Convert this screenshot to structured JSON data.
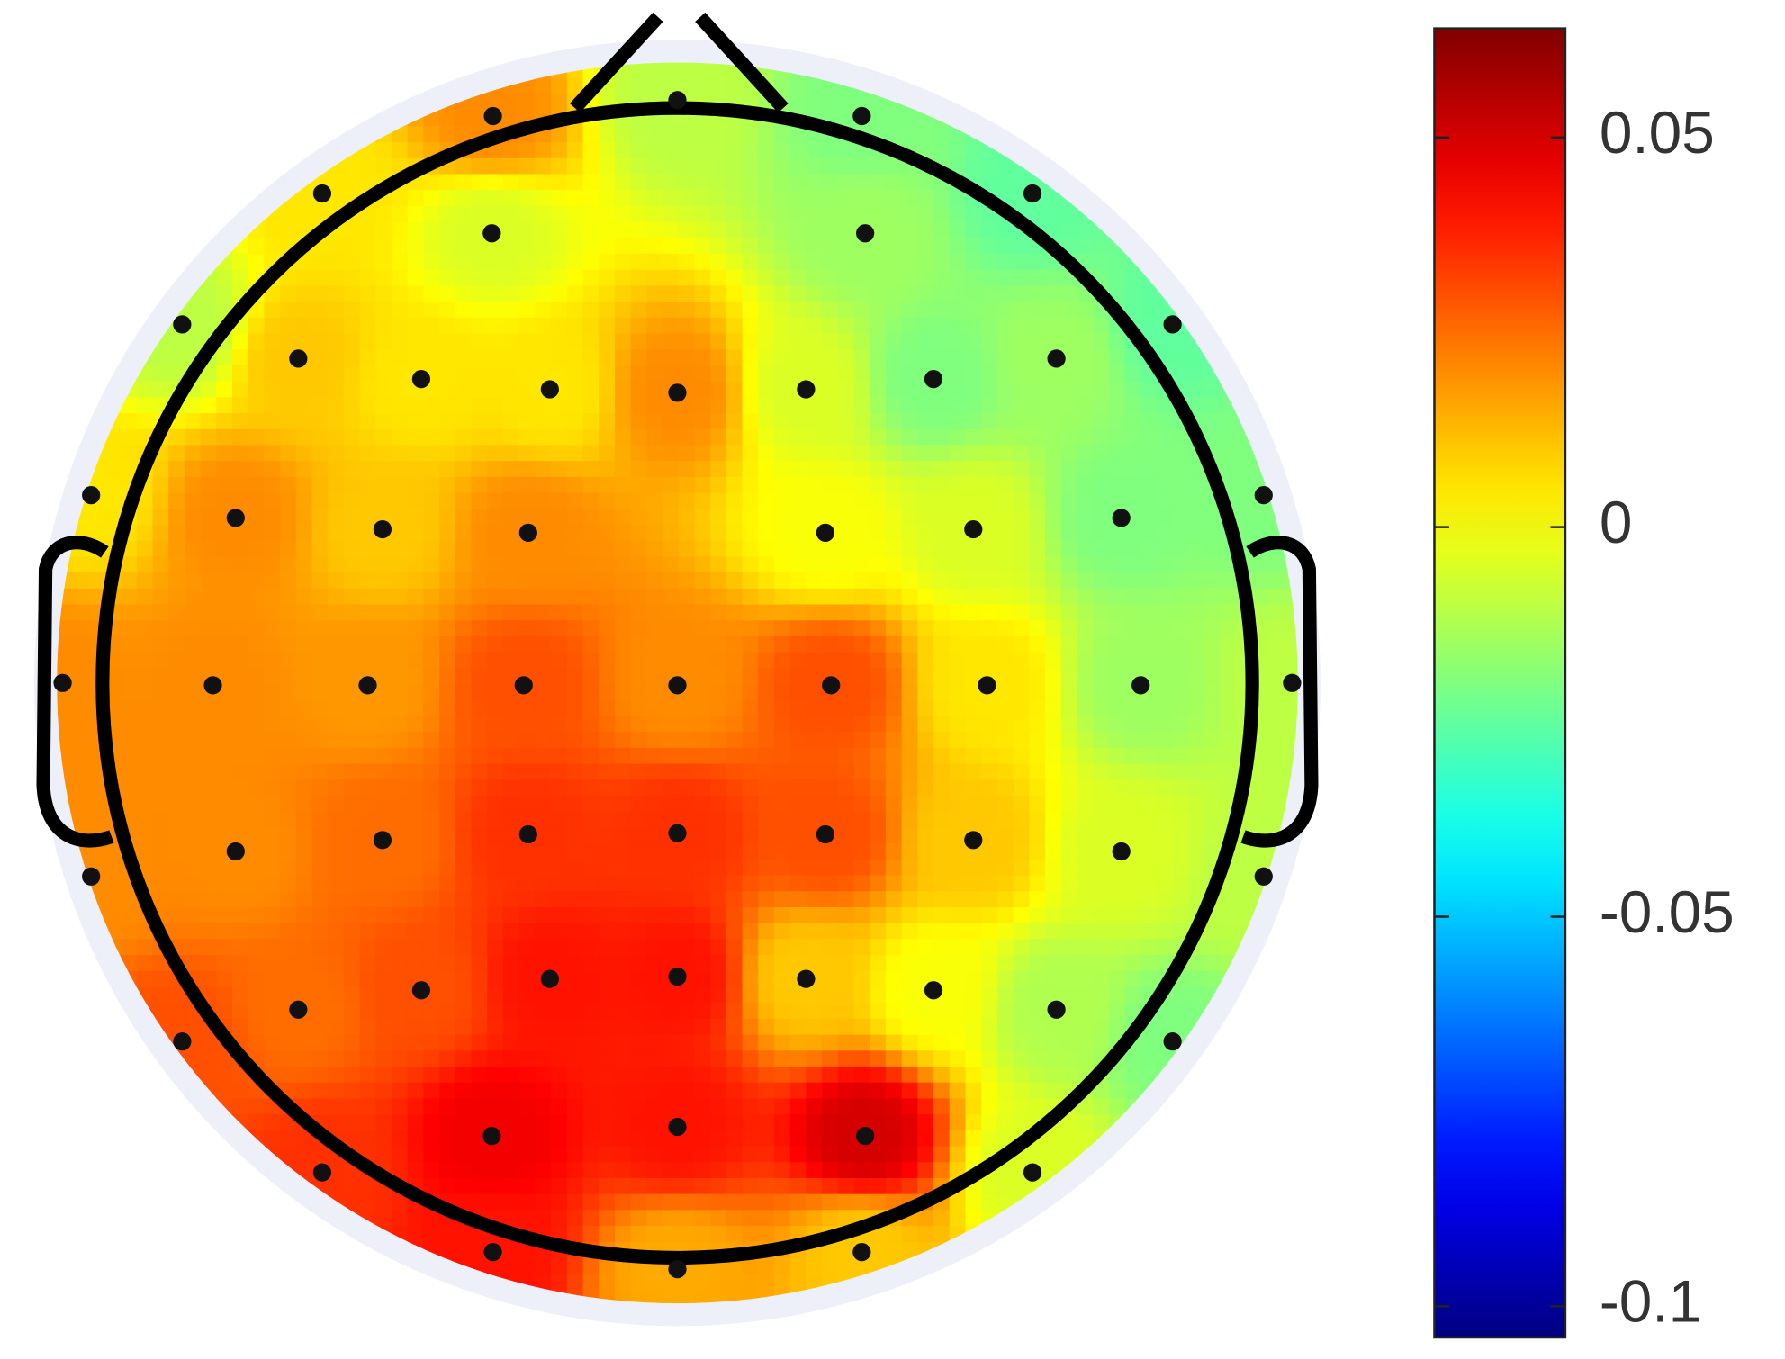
{
  "chart_data": {
    "type": "topomap",
    "colormap": "jet",
    "values": [
      0.02,
      -0.01,
      -0.02,
      0.005,
      -0.005,
      -0.015,
      -0.025,
      -0.01,
      0.01,
      0.005,
      0.005,
      0.02,
      -0.005,
      -0.02,
      -0.015,
      -0.025,
      0.005,
      0.02,
      0.01,
      0.02,
      0,
      -0.005,
      -0.02,
      -0.02,
      0.02,
      0.02,
      0.018,
      0.03,
      0.02,
      0.03,
      0.005,
      -0.015,
      -0.01,
      0.02,
      0.02,
      0.025,
      0.035,
      0.035,
      0.03,
      0.01,
      -0.005,
      -0.01,
      0.03,
      0.025,
      0.03,
      0.04,
      0.04,
      0.01,
      0,
      -0.012,
      -0.02,
      0.035,
      0.045,
      0.04,
      0.05,
      -0.005,
      0.04,
      0.015,
      0.01
    ],
    "clim": [
      -0.104,
      0.064
    ],
    "cticks": [
      0.05,
      0,
      -0.05,
      -0.1
    ]
  }
}
